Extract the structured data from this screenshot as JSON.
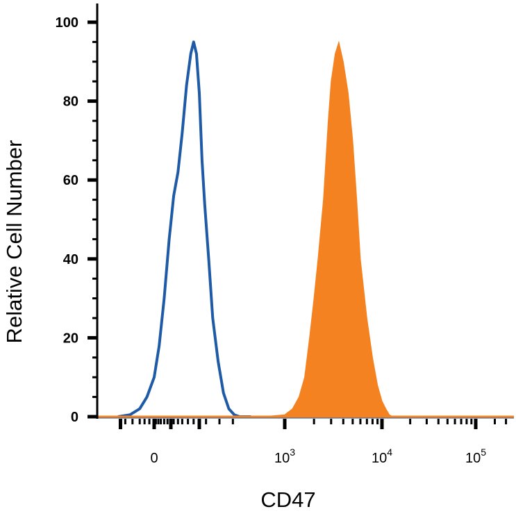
{
  "chart_data": {
    "type": "area",
    "title": "",
    "xlabel": "CD47",
    "ylabel": "Relative Cell Number",
    "x_scale": "logicle",
    "x_tick_labels": [
      "0",
      "10^3",
      "10^4",
      "10^5"
    ],
    "x_ticks": [
      {
        "base": "0",
        "exp": ""
      },
      {
        "base": "10",
        "exp": "3"
      },
      {
        "base": "10",
        "exp": "4"
      },
      {
        "base": "10",
        "exp": "5"
      }
    ],
    "y_ticks": [
      "0",
      "20",
      "40",
      "60",
      "80",
      "100"
    ],
    "ylim": [
      0,
      100
    ],
    "grid": false,
    "legend": "none",
    "series": [
      {
        "style": "outline",
        "color": "#1f5aa6",
        "x": [
          -150,
          -100,
          -60,
          -30,
          0,
          30,
          60,
          90,
          120,
          150,
          180,
          210,
          240,
          260,
          280,
          300,
          320,
          340,
          370,
          400,
          440,
          480,
          520,
          560,
          600,
          650,
          700
        ],
        "values": [
          0,
          0.5,
          2,
          5,
          10,
          18,
          30,
          45,
          56,
          62,
          72,
          84,
          92,
          95,
          92,
          82,
          65,
          54,
          40,
          25,
          14,
          6,
          2,
          0.5,
          0,
          0,
          0
        ]
      },
      {
        "style": "filled",
        "color": "#f58220",
        "x": [
          800,
          1000,
          1200,
          1400,
          1600,
          1800,
          2000,
          2200,
          2500,
          2800,
          3000,
          3300,
          3600,
          4000,
          4500,
          5000,
          5500,
          6000,
          7000,
          8000,
          9000,
          10000,
          11000,
          12000,
          13000
        ],
        "values": [
          0,
          0.5,
          2,
          5,
          10,
          20,
          30,
          40,
          55,
          75,
          85,
          92,
          95,
          90,
          82,
          70,
          55,
          40,
          25,
          15,
          8,
          4,
          2,
          0.5,
          0
        ]
      }
    ]
  }
}
